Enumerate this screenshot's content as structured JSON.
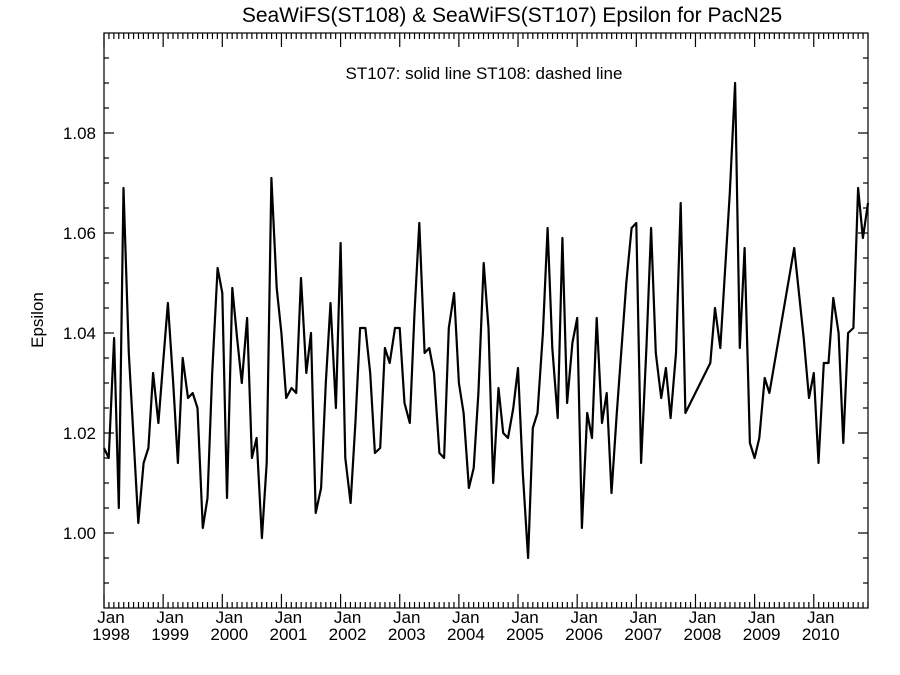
{
  "chart_data": {
    "type": "line",
    "title": "SeaWiFS(ST108) & SeaWiFS(ST107)  Epsilon for PacN25",
    "annotation": "ST107: solid line   ST108: dashed line",
    "xlabel": "",
    "ylabel": "Epsilon",
    "xlim": [
      1998.0,
      2010.917
    ],
    "ylim": [
      0.985,
      1.1
    ],
    "y_ticks": [
      1.0,
      1.02,
      1.04,
      1.06,
      1.08
    ],
    "y_tick_labels": [
      "1.00",
      "1.02",
      "1.04",
      "1.06",
      "1.08"
    ],
    "x_ticks": [
      1998,
      1999,
      2000,
      2001,
      2002,
      2003,
      2004,
      2005,
      2006,
      2007,
      2008,
      2009,
      2010
    ],
    "x_tick_month_labels": [
      "Jan",
      "Jan",
      "Jan",
      "Jan",
      "Jan",
      "Jan",
      "Jan",
      "Jan",
      "Jan",
      "Jan",
      "Jan",
      "Jan",
      "Jan"
    ],
    "x_tick_year_labels": [
      "1998",
      "1999",
      "2000",
      "2001",
      "2002",
      "2003",
      "2004",
      "2005",
      "2006",
      "2007",
      "2008",
      "2009",
      "2010"
    ],
    "grid": false,
    "series": [
      {
        "style": "solid",
        "color": "#000000",
        "points": [
          [
            1998.0,
            1.017
          ],
          [
            1998.08,
            1.015
          ],
          [
            1998.17,
            1.039
          ],
          [
            1998.25,
            1.005
          ],
          [
            1998.33,
            1.069
          ],
          [
            1998.42,
            1.036
          ],
          [
            1998.58,
            1.002
          ],
          [
            1998.67,
            1.014
          ],
          [
            1998.75,
            1.017
          ],
          [
            1998.83,
            1.032
          ],
          [
            1998.92,
            1.022
          ],
          [
            1999.0,
            1.034
          ],
          [
            1999.08,
            1.046
          ],
          [
            1999.17,
            1.03
          ],
          [
            1999.25,
            1.014
          ],
          [
            1999.33,
            1.035
          ],
          [
            1999.42,
            1.027
          ],
          [
            1999.5,
            1.028
          ],
          [
            1999.58,
            1.025
          ],
          [
            1999.67,
            1.001
          ],
          [
            1999.75,
            1.007
          ],
          [
            1999.83,
            1.032
          ],
          [
            1999.92,
            1.053
          ],
          [
            2000.0,
            1.048
          ],
          [
            2000.08,
            1.007
          ],
          [
            2000.17,
            1.049
          ],
          [
            2000.25,
            1.039
          ],
          [
            2000.33,
            1.03
          ],
          [
            2000.42,
            1.043
          ],
          [
            2000.5,
            1.015
          ],
          [
            2000.58,
            1.019
          ],
          [
            2000.67,
            0.999
          ],
          [
            2000.75,
            1.014
          ],
          [
            2000.83,
            1.071
          ],
          [
            2000.92,
            1.049
          ],
          [
            2001.0,
            1.04
          ],
          [
            2001.08,
            1.027
          ],
          [
            2001.17,
            1.029
          ],
          [
            2001.25,
            1.028
          ],
          [
            2001.33,
            1.051
          ],
          [
            2001.42,
            1.032
          ],
          [
            2001.5,
            1.04
          ],
          [
            2001.58,
            1.004
          ],
          [
            2001.67,
            1.009
          ],
          [
            2001.75,
            1.03
          ],
          [
            2001.83,
            1.046
          ],
          [
            2001.92,
            1.025
          ],
          [
            2002.0,
            1.058
          ],
          [
            2002.08,
            1.015
          ],
          [
            2002.17,
            1.006
          ],
          [
            2002.25,
            1.022
          ],
          [
            2002.33,
            1.041
          ],
          [
            2002.42,
            1.041
          ],
          [
            2002.5,
            1.032
          ],
          [
            2002.58,
            1.016
          ],
          [
            2002.67,
            1.017
          ],
          [
            2002.75,
            1.037
          ],
          [
            2002.83,
            1.034
          ],
          [
            2002.92,
            1.041
          ],
          [
            2003.0,
            1.041
          ],
          [
            2003.08,
            1.026
          ],
          [
            2003.17,
            1.022
          ],
          [
            2003.25,
            1.044
          ],
          [
            2003.33,
            1.062
          ],
          [
            2003.42,
            1.036
          ],
          [
            2003.5,
            1.037
          ],
          [
            2003.58,
            1.032
          ],
          [
            2003.67,
            1.016
          ],
          [
            2003.75,
            1.015
          ],
          [
            2003.83,
            1.041
          ],
          [
            2003.92,
            1.048
          ],
          [
            2004.0,
            1.03
          ],
          [
            2004.08,
            1.024
          ],
          [
            2004.17,
            1.009
          ],
          [
            2004.25,
            1.013
          ],
          [
            2004.33,
            1.028
          ],
          [
            2004.42,
            1.054
          ],
          [
            2004.5,
            1.041
          ],
          [
            2004.58,
            1.01
          ],
          [
            2004.67,
            1.029
          ],
          [
            2004.75,
            1.02
          ],
          [
            2004.83,
            1.019
          ],
          [
            2004.92,
            1.025
          ],
          [
            2005.0,
            1.033
          ],
          [
            2005.08,
            1.012
          ],
          [
            2005.17,
            0.995
          ],
          [
            2005.25,
            1.021
          ],
          [
            2005.33,
            1.024
          ],
          [
            2005.42,
            1.04
          ],
          [
            2005.5,
            1.061
          ],
          [
            2005.58,
            1.037
          ],
          [
            2005.67,
            1.023
          ],
          [
            2005.75,
            1.059
          ],
          [
            2005.83,
            1.026
          ],
          [
            2005.92,
            1.038
          ],
          [
            2006.0,
            1.043
          ],
          [
            2006.08,
            1.001
          ],
          [
            2006.17,
            1.024
          ],
          [
            2006.25,
            1.019
          ],
          [
            2006.33,
            1.043
          ],
          [
            2006.42,
            1.022
          ],
          [
            2006.5,
            1.028
          ],
          [
            2006.58,
            1.008
          ],
          [
            2006.67,
            1.024
          ],
          [
            2006.83,
            1.05
          ],
          [
            2006.92,
            1.061
          ],
          [
            2007.0,
            1.062
          ],
          [
            2007.08,
            1.014
          ],
          [
            2007.17,
            1.037
          ],
          [
            2007.25,
            1.061
          ],
          [
            2007.33,
            1.036
          ],
          [
            2007.42,
            1.027
          ],
          [
            2007.5,
            1.033
          ],
          [
            2007.58,
            1.023
          ],
          [
            2007.67,
            1.036
          ],
          [
            2007.75,
            1.066
          ],
          [
            2007.83,
            1.024
          ],
          [
            2008.25,
            1.034
          ],
          [
            2008.33,
            1.045
          ],
          [
            2008.42,
            1.037
          ],
          [
            2008.58,
            1.068
          ],
          [
            2008.67,
            1.09
          ],
          [
            2008.75,
            1.037
          ],
          [
            2008.83,
            1.057
          ],
          [
            2008.92,
            1.018
          ],
          [
            2009.0,
            1.015
          ],
          [
            2009.08,
            1.019
          ],
          [
            2009.17,
            1.031
          ],
          [
            2009.25,
            1.028
          ],
          [
            2009.67,
            1.057
          ],
          [
            2009.83,
            1.039
          ],
          [
            2009.92,
            1.027
          ],
          [
            2010.0,
            1.032
          ],
          [
            2010.08,
            1.014
          ],
          [
            2010.17,
            1.034
          ],
          [
            2010.25,
            1.034
          ],
          [
            2010.33,
            1.047
          ],
          [
            2010.42,
            1.04
          ],
          [
            2010.5,
            1.018
          ],
          [
            2010.58,
            1.04
          ],
          [
            2010.67,
            1.041
          ],
          [
            2010.75,
            1.069
          ],
          [
            2010.83,
            1.059
          ],
          [
            2010.917,
            1.066
          ]
        ]
      }
    ]
  }
}
